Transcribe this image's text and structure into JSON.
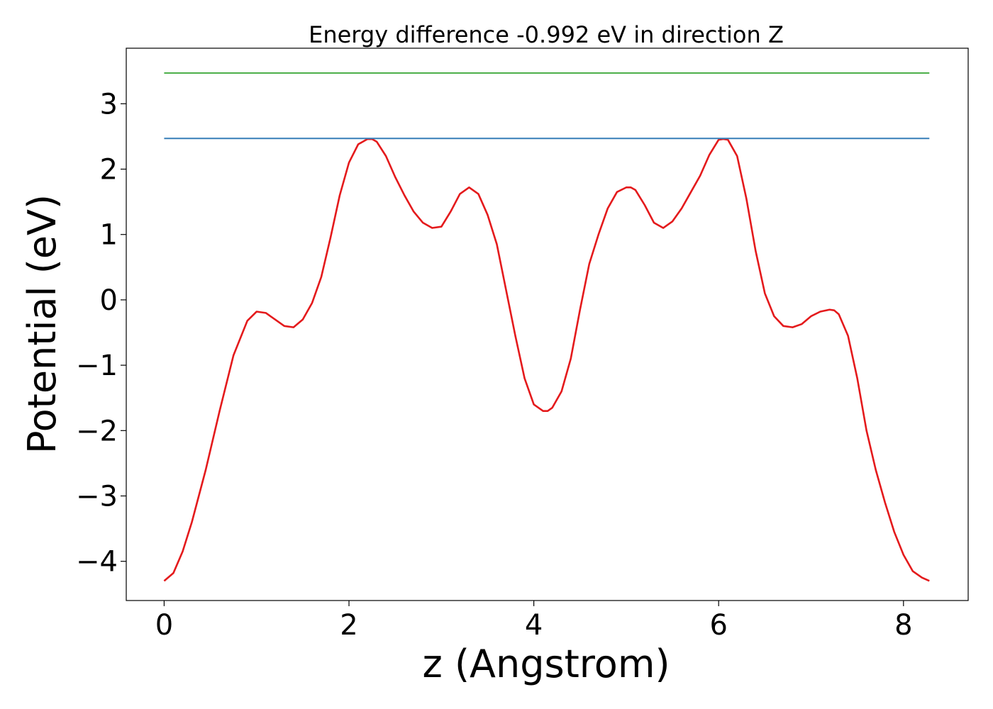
{
  "chart_data": {
    "type": "line",
    "title": "Energy difference -0.992 eV in direction Z",
    "xlabel": "z (Angstrom)",
    "ylabel": "Potential (eV)",
    "xlim": [
      -0.41,
      8.7
    ],
    "ylim": [
      -4.6,
      3.85
    ],
    "xticks": [
      0,
      2,
      4,
      6,
      8
    ],
    "yticks": [
      -4,
      -3,
      -2,
      -1,
      0,
      1,
      2,
      3
    ],
    "grid": false,
    "series": [
      {
        "color": "#e41a1c",
        "x": [
          0,
          0.1,
          0.2,
          0.3,
          0.45,
          0.6,
          0.75,
          0.9,
          1.0,
          1.1,
          1.2,
          1.3,
          1.4,
          1.5,
          1.6,
          1.7,
          1.8,
          1.9,
          2.0,
          2.1,
          2.2,
          2.25,
          2.3,
          2.4,
          2.5,
          2.6,
          2.7,
          2.8,
          2.9,
          3.0,
          3.1,
          3.2,
          3.3,
          3.4,
          3.5,
          3.6,
          3.7,
          3.8,
          3.9,
          4.0,
          4.1,
          4.15,
          4.2,
          4.3,
          4.4,
          4.5,
          4.6,
          4.7,
          4.8,
          4.9,
          5.0,
          5.05,
          5.1,
          5.2,
          5.3,
          5.4,
          5.5,
          5.6,
          5.7,
          5.8,
          5.9,
          6.0,
          6.05,
          6.1,
          6.2,
          6.3,
          6.4,
          6.5,
          6.6,
          6.7,
          6.8,
          6.9,
          7.0,
          7.1,
          7.2,
          7.25,
          7.3,
          7.4,
          7.5,
          7.6,
          7.7,
          7.8,
          7.9,
          8.0,
          8.1,
          8.2,
          8.28
        ],
        "y": [
          -4.3,
          -4.18,
          -3.85,
          -3.4,
          -2.6,
          -1.7,
          -0.85,
          -0.32,
          -0.18,
          -0.2,
          -0.3,
          -0.4,
          -0.42,
          -0.3,
          -0.05,
          0.35,
          0.95,
          1.6,
          2.1,
          2.38,
          2.46,
          2.46,
          2.42,
          2.2,
          1.88,
          1.6,
          1.35,
          1.18,
          1.1,
          1.12,
          1.35,
          1.62,
          1.72,
          1.62,
          1.3,
          0.85,
          0.15,
          -0.55,
          -1.2,
          -1.6,
          -1.7,
          -1.7,
          -1.65,
          -1.4,
          -0.9,
          -0.15,
          0.55,
          1.0,
          1.4,
          1.65,
          1.72,
          1.72,
          1.68,
          1.45,
          1.18,
          1.1,
          1.2,
          1.4,
          1.65,
          1.9,
          2.22,
          2.45,
          2.46,
          2.45,
          2.2,
          1.55,
          0.75,
          0.1,
          -0.25,
          -0.4,
          -0.42,
          -0.37,
          -0.25,
          -0.18,
          -0.15,
          -0.16,
          -0.22,
          -0.55,
          -1.2,
          -2.0,
          -2.6,
          -3.1,
          -3.55,
          -3.9,
          -4.15,
          -4.25,
          -4.3
        ]
      },
      {
        "color": "#377eb8",
        "x": [
          0,
          8.28
        ],
        "y": [
          2.47,
          2.47
        ]
      },
      {
        "color": "#4daf4a",
        "x": [
          0,
          8.28
        ],
        "y": [
          3.47,
          3.47
        ]
      }
    ]
  }
}
